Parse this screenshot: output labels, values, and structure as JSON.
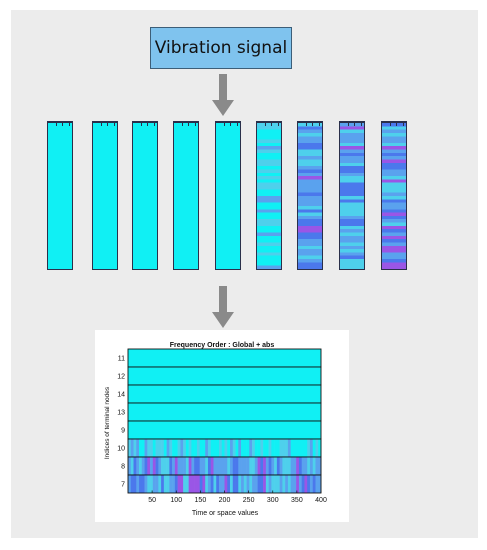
{
  "signal_label": "Vibration signal",
  "icons": {
    "arrow_1": "arrow-down-icon",
    "arrow_2": "arrow-down-icon"
  },
  "strips": [
    {
      "style": "uniform"
    },
    {
      "style": "uniform"
    },
    {
      "style": "uniform"
    },
    {
      "style": "uniform"
    },
    {
      "style": "uniform"
    },
    {
      "style": "light-banded"
    },
    {
      "style": "medium-banded"
    },
    {
      "style": "medium-banded"
    },
    {
      "style": "heavy-banded"
    }
  ],
  "colors": {
    "uniform": "#10f0f4",
    "band_light": "#4ed0ec",
    "band_mid": "#5aa2ee",
    "band_blue": "#4b78ec",
    "band_purple": "#9a56e6",
    "arrow": "#8a8a8a",
    "box": "#7fc3ee"
  },
  "chart_data": {
    "type": "heatmap",
    "title": "Frequency Order : Global + abs",
    "xlabel": "Time or space values",
    "ylabel": "Indices of terminal nodes",
    "xlim": [
      0,
      400
    ],
    "x_ticks": [
      50,
      100,
      150,
      200,
      250,
      300,
      350,
      400
    ],
    "rows": [
      "11",
      "12",
      "14",
      "13",
      "9",
      "10",
      "8",
      "7"
    ],
    "row_texture": [
      "uniform",
      "uniform",
      "uniform",
      "uniform",
      "uniform",
      "light-banded",
      "medium-banded",
      "heavy-banded"
    ]
  }
}
